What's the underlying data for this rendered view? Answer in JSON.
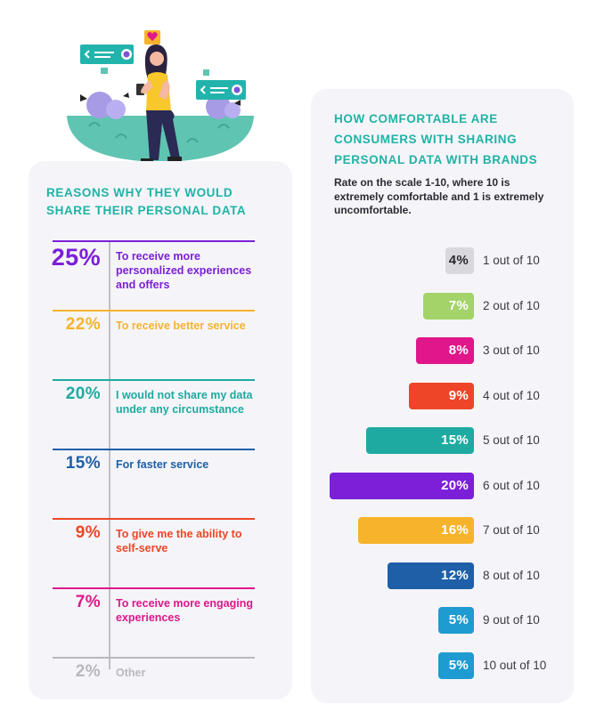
{
  "left_panel": {
    "title": "REASONS WHY THEY WOULD SHARE THEIR PERSONAL DATA",
    "reasons": [
      {
        "percent": "25%",
        "label": "To receive more personalized experiences and offers",
        "color": "#7b1fd8"
      },
      {
        "percent": "22%",
        "label": "To receive better service",
        "color": "#f7b32b"
      },
      {
        "percent": "20%",
        "label": "I would not share my data under any circumstance",
        "color": "#1eaaa0"
      },
      {
        "percent": "15%",
        "label": "For faster service",
        "color": "#1e5fa8"
      },
      {
        "percent": "9%",
        "label": "To give me the ability to self-serve",
        "color": "#ee4528"
      },
      {
        "percent": "7%",
        "label": "To receive more engaging experiences",
        "color": "#e0168a"
      },
      {
        "percent": "2%",
        "label": "Other",
        "color": "#b8b8c0"
      }
    ]
  },
  "right_panel": {
    "title": "HOW COMFORTABLE ARE CONSUMERS WITH SHARING PERSONAL DATA WITH BRANDS",
    "subtitle": "Rate on the scale 1-10, where 10 is extremely comfortable and 1 is extremely uncomfortable."
  },
  "chart_data": {
    "type": "bar",
    "orientation": "horizontal",
    "categories": [
      "1 out of 10",
      "2 out of 10",
      "3 out of 10",
      "4 out of 10",
      "5 out of 10",
      "6 out of 10",
      "7 out of 10",
      "8 out of 10",
      "9 out of 10",
      "10 out of 10"
    ],
    "values": [
      4,
      7,
      8,
      9,
      15,
      20,
      16,
      12,
      5,
      5
    ],
    "value_labels": [
      "4%",
      "7%",
      "8%",
      "9%",
      "15%",
      "20%",
      "16%",
      "12%",
      "5%",
      "5%"
    ],
    "colors": [
      "#d9d9dd",
      "#a4d36a",
      "#e0168a",
      "#ee4528",
      "#1eaaa0",
      "#7b1fd8",
      "#f7b32b",
      "#1e5fa8",
      "#1e9bd0",
      "#1e9bd0"
    ],
    "title": "HOW COMFORTABLE ARE CONSUMERS WITH SHARING PERSONAL DATA WITH BRANDS",
    "xlim": [
      0,
      20
    ],
    "grid": false,
    "legend": "none"
  }
}
